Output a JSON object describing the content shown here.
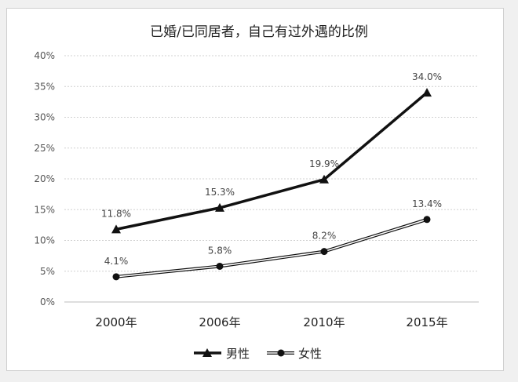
{
  "chart_data": {
    "type": "line",
    "title": "已婚/已同居者，自己有过外遇的比例",
    "categories": [
      "2000年",
      "2006年",
      "2010年",
      "2015年"
    ],
    "ylim": [
      0,
      40
    ],
    "yticks": [
      "0%",
      "5%",
      "10%",
      "15%",
      "20%",
      "25%",
      "30%",
      "35%",
      "40%"
    ],
    "grid": true,
    "legend_position": "bottom",
    "series": [
      {
        "name": "男性",
        "marker": "triangle",
        "values": [
          11.8,
          15.3,
          19.9,
          34.0
        ],
        "labels": [
          "11.8%",
          "15.3%",
          "19.9%",
          "34.0%"
        ],
        "color": "#111111"
      },
      {
        "name": "女性",
        "marker": "circle",
        "values": [
          4.1,
          5.8,
          8.2,
          13.4
        ],
        "labels": [
          "4.1%",
          "5.8%",
          "8.2%",
          "13.4%"
        ],
        "color": "#111111"
      }
    ]
  }
}
